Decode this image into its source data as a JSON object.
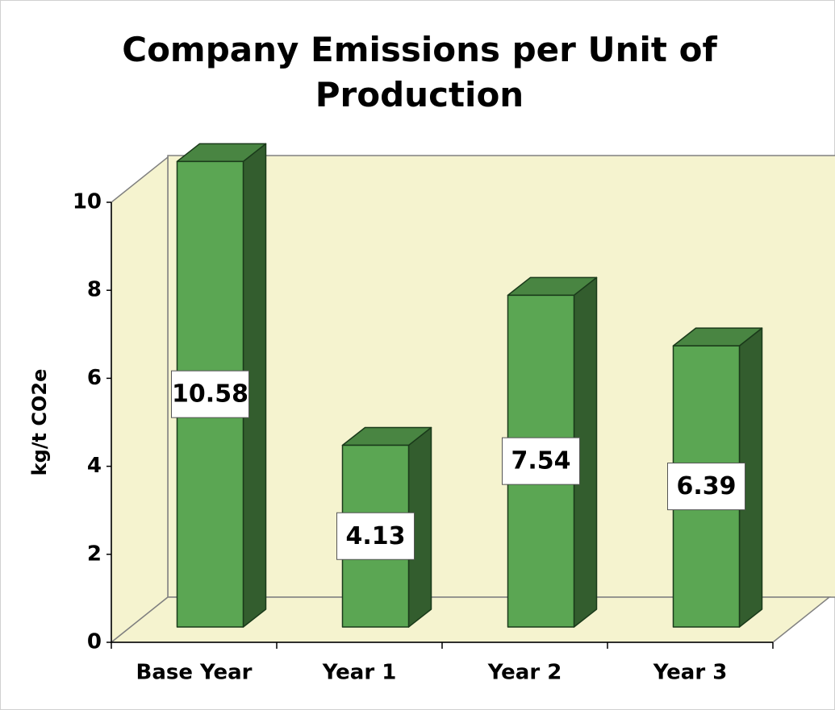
{
  "chart_data": {
    "type": "bar3d",
    "title": "Company Emissions per Unit of Production",
    "y_label": "kg/t CO2e",
    "categories": [
      "Base Year",
      "Year 1",
      "Year 2",
      "Year 3"
    ],
    "values": [
      10.58,
      4.13,
      7.54,
      6.39
    ],
    "color": "#5ba653",
    "wall_color": "#f5f3cf",
    "ylim": [
      0,
      10
    ],
    "yticks": [
      0,
      2,
      4,
      6,
      8,
      10
    ]
  }
}
